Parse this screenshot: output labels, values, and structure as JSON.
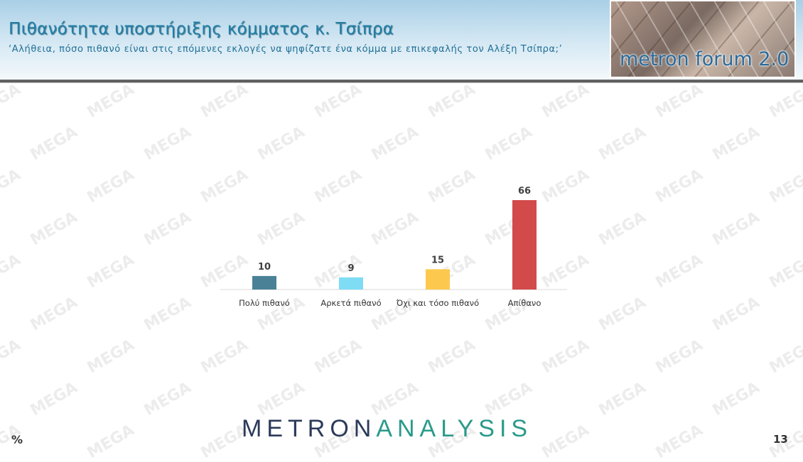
{
  "header": {
    "title": "Πιθανότητα υποστήριξης κόμματος κ. Τσίπρα",
    "subtitle": "‘Αλήθεια, πόσο πιθανό είναι στις επόμενες εκλογές να ψηφίζατε ένα κόμμα με επικεφαλής τον Αλέξη Τσίπρα;’",
    "logo_text": "metron forum 2.0"
  },
  "watermark": "MEGA",
  "chart_data": {
    "type": "bar",
    "categories": [
      "Πολύ πιθανό",
      "Αρκετά πιθανό",
      "Όχι και τόσο πιθανό",
      "Απίθανο"
    ],
    "values": [
      10,
      9,
      15,
      66
    ],
    "colors": [
      "#4a8196",
      "#7fdcf5",
      "#fcc94e",
      "#d24a4a"
    ],
    "ylim": [
      0,
      70
    ],
    "grid": false,
    "data_labels": true
  },
  "footer": {
    "brand_part1": "METRON",
    "brand_part2": "ANALYSIS",
    "unit": "%",
    "page_number": "13"
  }
}
